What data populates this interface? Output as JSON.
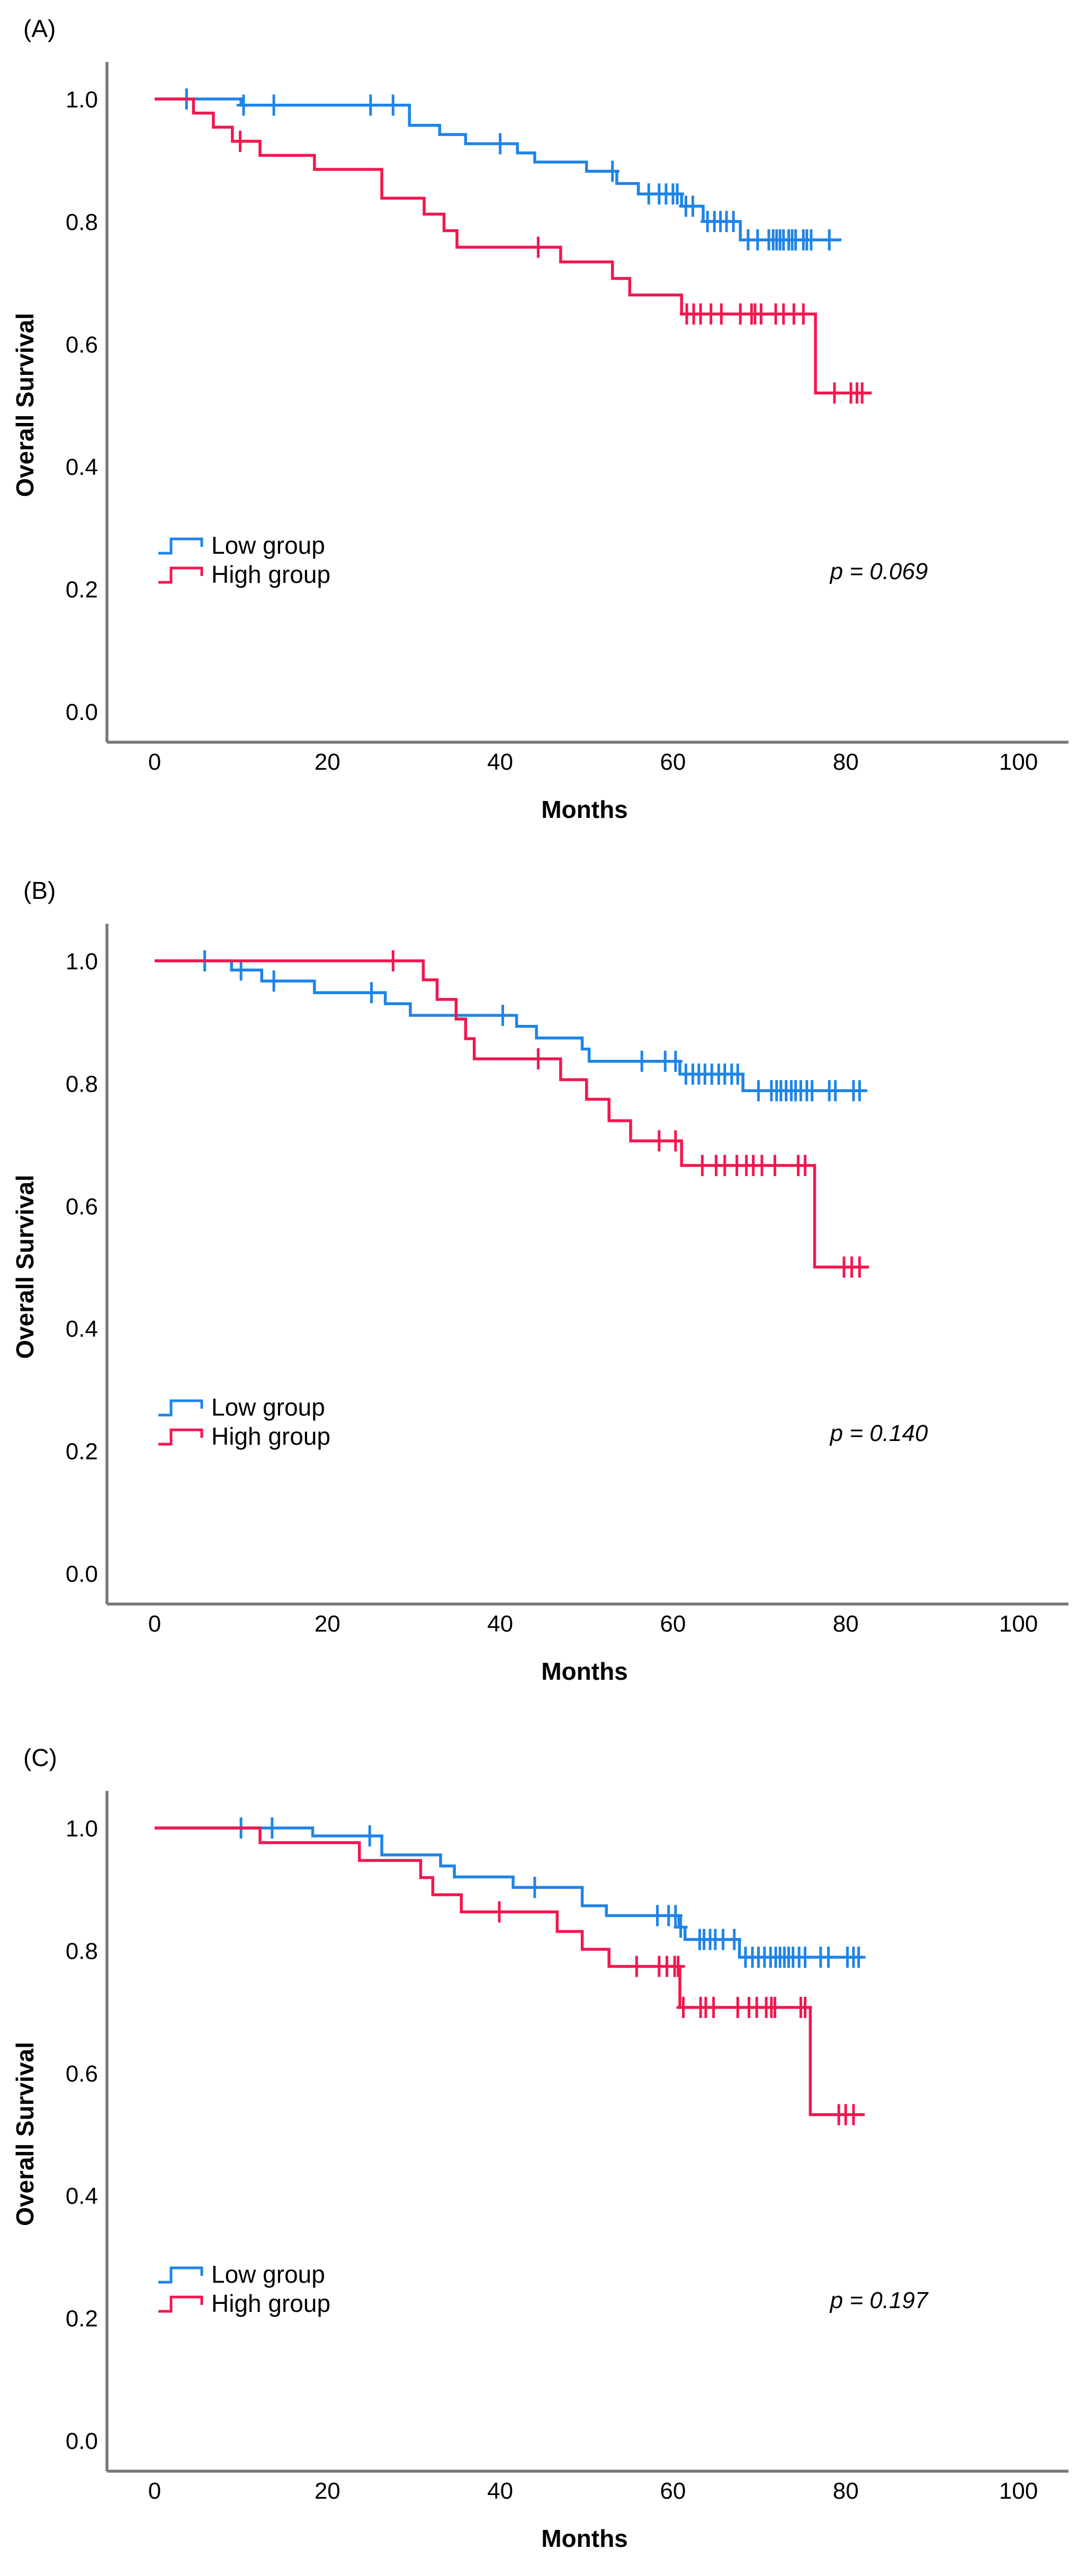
{
  "chart_data": [
    {
      "type": "line",
      "subtype": "kaplan-meier-step",
      "panel_label": "(A)",
      "annotation": "p = 0.069",
      "xlabel": "Months",
      "ylabel": "Overall Survival",
      "xlim": [
        0,
        107
      ],
      "ylim": [
        0.0,
        1.05
      ],
      "x_ticks": [
        "0",
        "20",
        "40",
        "60",
        "80",
        "100"
      ],
      "y_ticks": [
        "1.0",
        "0.8",
        "0.6",
        "0.4",
        "0.2",
        "0.0"
      ],
      "grid": false,
      "legend_position": "lower-left",
      "series": [
        {
          "name": "Low group",
          "color_key": "low",
          "steps": [
            [
              0,
              1.0
            ],
            [
              10,
              0.99
            ],
            [
              29.5,
              0.957
            ],
            [
              33,
              0.942
            ],
            [
              36,
              0.927
            ],
            [
              42,
              0.912
            ],
            [
              44,
              0.897
            ],
            [
              50,
              0.882
            ],
            [
              53.5,
              0.862
            ],
            [
              56,
              0.845
            ],
            [
              61,
              0.825
            ],
            [
              63.5,
              0.8
            ],
            [
              67.8,
              0.77
            ]
          ],
          "end_x": 79.5,
          "censors": [
            3.7,
            10.3,
            13.8,
            25,
            27.6,
            40,
            53,
            57.2,
            58.4,
            59.2,
            60,
            60.5,
            61.5,
            62.3,
            64,
            64.8,
            65.5,
            66.2,
            67,
            68.7,
            69.8,
            71.1,
            71.6,
            72,
            72.4,
            72.8,
            73.4,
            73.8,
            74.2,
            75.1,
            75.5,
            76,
            78.1
          ]
        },
        {
          "name": "High group",
          "color_key": "high",
          "steps": [
            [
              0,
              1.0
            ],
            [
              4.5,
              0.977
            ],
            [
              6.8,
              0.954
            ],
            [
              9,
              0.931
            ],
            [
              12.2,
              0.908
            ],
            [
              18.5,
              0.885
            ],
            [
              26.3,
              0.838
            ],
            [
              31.2,
              0.812
            ],
            [
              33.5,
              0.785
            ],
            [
              35,
              0.758
            ],
            [
              47,
              0.734
            ],
            [
              53,
              0.707
            ],
            [
              55,
              0.68
            ],
            [
              61,
              0.649
            ],
            [
              76.5,
              0.52
            ]
          ],
          "end_x": 83,
          "censors": [
            9.9,
            44.4,
            61.6,
            62.4,
            63.2,
            64.4,
            65.6,
            67.8,
            69.1,
            69.5,
            70.2,
            71.9,
            72.8,
            74,
            75.1,
            78.7,
            80.6,
            81.3,
            81.9
          ]
        }
      ]
    },
    {
      "type": "line",
      "subtype": "kaplan-meier-step",
      "panel_label": "(B)",
      "annotation": "p = 0.140",
      "xlabel": "Months",
      "ylabel": "Overall Survival",
      "xlim": [
        0,
        107
      ],
      "ylim": [
        0.0,
        1.05
      ],
      "x_ticks": [
        "0",
        "20",
        "40",
        "60",
        "80",
        "100"
      ],
      "y_ticks": [
        "1.0",
        "0.8",
        "0.6",
        "0.4",
        "0.2",
        "0.0"
      ],
      "grid": false,
      "legend_position": "lower-left",
      "series": [
        {
          "name": "Low group",
          "color_key": "low",
          "steps": [
            [
              0,
              1.0
            ],
            [
              8.9,
              0.985
            ],
            [
              12.4,
              0.967
            ],
            [
              18.5,
              0.948
            ],
            [
              26.7,
              0.93
            ],
            [
              29.6,
              0.911
            ],
            [
              41.9,
              0.893
            ],
            [
              44.2,
              0.874
            ],
            [
              49.5,
              0.856
            ],
            [
              50.3,
              0.836
            ],
            [
              60.8,
              0.815
            ],
            [
              68.1,
              0.788
            ]
          ],
          "end_x": 82.5,
          "censors": [
            5.8,
            10,
            13.8,
            25.1,
            40.3,
            56.4,
            59.1,
            60.3,
            61.5,
            62.3,
            63,
            63.7,
            64.5,
            65.3,
            66,
            66.8,
            67.5,
            69.9,
            71.4,
            72,
            72.5,
            73.1,
            73.7,
            74.2,
            74.8,
            75.5,
            76.1,
            78.1,
            78.8,
            80.9,
            81.6
          ]
        },
        {
          "name": "High group",
          "color_key": "high",
          "steps": [
            [
              0,
              1.0
            ],
            [
              31.1,
              0.969
            ],
            [
              32.7,
              0.937
            ],
            [
              34.9,
              0.905
            ],
            [
              36,
              0.873
            ],
            [
              37,
              0.84
            ],
            [
              47,
              0.806
            ],
            [
              50,
              0.774
            ],
            [
              52.6,
              0.739
            ],
            [
              55.1,
              0.706
            ],
            [
              61,
              0.666
            ],
            [
              76.4,
              0.5
            ]
          ],
          "end_x": 82.7,
          "censors": [
            27.6,
            44.4,
            58.4,
            60.3,
            63.4,
            65,
            66,
            67.4,
            68.5,
            69.3,
            70.3,
            71.8,
            74.5,
            75.3,
            79.8,
            80.7,
            81.6
          ]
        }
      ]
    },
    {
      "type": "line",
      "subtype": "kaplan-meier-step",
      "panel_label": "(C)",
      "annotation": "p = 0.197",
      "xlabel": "Months",
      "ylabel": "Overall Survival",
      "xlim": [
        0,
        107
      ],
      "ylim": [
        0.0,
        1.05
      ],
      "x_ticks": [
        "0",
        "20",
        "40",
        "60",
        "80",
        "100"
      ],
      "y_ticks": [
        "1.0",
        "0.8",
        "0.6",
        "0.4",
        "0.2",
        "0.0"
      ],
      "grid": false,
      "legend_position": "lower-left",
      "series": [
        {
          "name": "Low group",
          "color_key": "low",
          "steps": [
            [
              0,
              1.0
            ],
            [
              18.3,
              0.987
            ],
            [
              26.3,
              0.956
            ],
            [
              33.1,
              0.938
            ],
            [
              34.7,
              0.92
            ],
            [
              41.5,
              0.903
            ],
            [
              49.5,
              0.873
            ],
            [
              52.3,
              0.857
            ],
            [
              60.7,
              0.838
            ],
            [
              61.4,
              0.818
            ],
            [
              67.7,
              0.789
            ]
          ],
          "end_x": 82,
          "censors": [
            10,
            13.6,
            24.9,
            44,
            58.2,
            59.5,
            60.3,
            60.9,
            63.1,
            63.6,
            64.3,
            64.9,
            65.8,
            67.1,
            68.4,
            69.2,
            69.9,
            70.6,
            71.3,
            71.9,
            72.4,
            72.9,
            73.4,
            73.9,
            74.6,
            75.3,
            77.1,
            78,
            80.2,
            80.9,
            81.5
          ]
        },
        {
          "name": "High group",
          "color_key": "high",
          "steps": [
            [
              0,
              1.0
            ],
            [
              12.2,
              0.976
            ],
            [
              23.7,
              0.947
            ],
            [
              30.8,
              0.919
            ],
            [
              32.2,
              0.891
            ],
            [
              35.5,
              0.863
            ],
            [
              46.6,
              0.831
            ],
            [
              49.5,
              0.802
            ],
            [
              52.6,
              0.774
            ],
            [
              60.8,
              0.707
            ],
            [
              75.9,
              0.532
            ]
          ],
          "end_x": 82.2,
          "censors": [
            39.9,
            55.8,
            58.4,
            59.3,
            60.2,
            60.6,
            61.2,
            63.2,
            63.8,
            64.7,
            67.5,
            68.8,
            69.7,
            70.8,
            71.4,
            71.8,
            74.8,
            75.3,
            79.2,
            80,
            80.9
          ]
        }
      ]
    }
  ],
  "colors": {
    "low": "#1E84E8",
    "high": "#F4164F",
    "axis": "#77787b",
    "text": "#000000"
  }
}
